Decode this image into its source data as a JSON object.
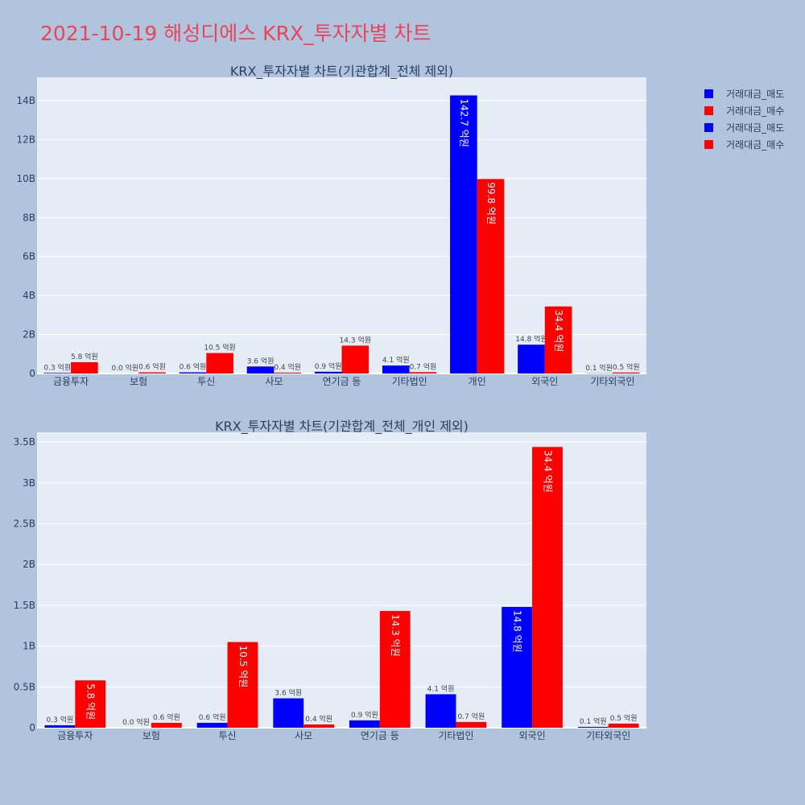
{
  "page": {
    "title": "2021-10-19 해성디에스 KRX_투자자별 차트"
  },
  "legend": [
    {
      "label": "거래대금_매도",
      "color": "#0000ff"
    },
    {
      "label": "거래대금_매수",
      "color": "#ff0000"
    },
    {
      "label": "거래대금_매도",
      "color": "#0000ff"
    },
    {
      "label": "거래대금_매수",
      "color": "#ff0000"
    }
  ],
  "chart_data": [
    {
      "type": "bar",
      "title": "KRX_투자자별 차트(기관합계_전체 제외)",
      "categories": [
        "금융투자",
        "보험",
        "투신",
        "사모",
        "연기금 등",
        "기타법인",
        "개인",
        "외국인",
        "기타외국인"
      ],
      "ylim": [
        0,
        15200000000
      ],
      "yticks": [
        0,
        2000000000,
        4000000000,
        6000000000,
        8000000000,
        10000000000,
        12000000000,
        14000000000
      ],
      "ytick_labels": [
        "0",
        "2B",
        "4B",
        "6B",
        "8B",
        "10B",
        "12B",
        "14B"
      ],
      "grid": true,
      "series": [
        {
          "name": "거래대금_매도",
          "color": "#0000ff",
          "values": [
            30000000,
            0,
            60000000,
            360000000,
            90000000,
            410000000,
            14270000000,
            1480000000,
            10000000
          ],
          "labels": [
            "0.3 억원",
            "0.0 억원",
            "0.6 억원",
            "3.6 억원",
            "0.9 억원",
            "4.1 억원",
            "142.7 억원",
            "14.8 억원",
            "0.1 억원"
          ]
        },
        {
          "name": "거래대금_매수",
          "color": "#ff0000",
          "values": [
            580000000,
            60000000,
            1050000000,
            40000000,
            1430000000,
            70000000,
            9980000000,
            3440000000,
            50000000
          ],
          "labels": [
            "5.8 억원",
            "0.6 억원",
            "10.5 억원",
            "0.4 억원",
            "14.3 억원",
            "0.7 억원",
            "99.8 억원",
            "34.4 억원",
            "0.5 억원"
          ]
        }
      ]
    },
    {
      "type": "bar",
      "title": "KRX_투자자별 차트(기관합계_전체_개인 제외)",
      "categories": [
        "금융투자",
        "보험",
        "투신",
        "사모",
        "연기금 등",
        "기타법인",
        "외국인",
        "기타외국인"
      ],
      "ylim": [
        0,
        3620000000
      ],
      "yticks": [
        0,
        500000000,
        1000000000,
        1500000000,
        2000000000,
        2500000000,
        3000000000,
        3500000000
      ],
      "ytick_labels": [
        "0",
        "0.5B",
        "1B",
        "1.5B",
        "2B",
        "2.5B",
        "3B",
        "3.5B"
      ],
      "grid": true,
      "series": [
        {
          "name": "거래대금_매도",
          "color": "#0000ff",
          "values": [
            30000000,
            0,
            60000000,
            360000000,
            90000000,
            410000000,
            1480000000,
            10000000
          ],
          "labels": [
            "0.3 억원",
            "0.0 억원",
            "0.6 억원",
            "3.6 억원",
            "0.9 억원",
            "4.1 억원",
            "14.8 억원",
            "0.1 억원"
          ]
        },
        {
          "name": "거래대금_매수",
          "color": "#ff0000",
          "values": [
            580000000,
            60000000,
            1050000000,
            40000000,
            1430000000,
            70000000,
            3440000000,
            50000000
          ],
          "labels": [
            "5.8 억원",
            "0.6 억원",
            "10.5 억원",
            "0.4 억원",
            "14.3 억원",
            "0.7 억원",
            "34.4 억원",
            "0.5 억원"
          ]
        }
      ]
    }
  ]
}
